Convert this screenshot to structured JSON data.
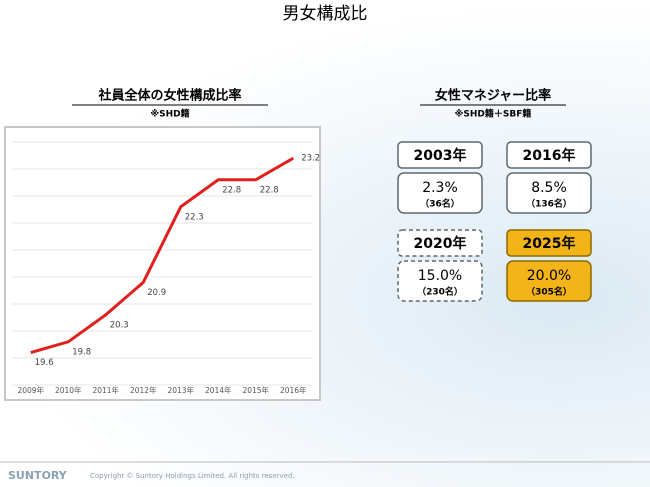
{
  "title": "男女構成比",
  "chart_data": {
    "type": "line",
    "title": "社員全体の女性構成比率",
    "subtitle": "※SHD籍",
    "categories": [
      "2009年",
      "2010年",
      "2011年",
      "2012年",
      "2013年",
      "2014年",
      "2015年",
      "2016年"
    ],
    "values": [
      19.6,
      19.8,
      20.3,
      20.9,
      22.3,
      22.8,
      22.8,
      23.2
    ],
    "color": "#e0201c",
    "ylim": [
      19,
      23.5
    ],
    "yticks": [
      19,
      19.5,
      20,
      20.5,
      21,
      21.5,
      22,
      22.5,
      23,
      23.5
    ],
    "grid": true
  },
  "manager_ratio": {
    "title": "女性マネジャー比率",
    "subtitle": "※SHD籍＋SBF籍",
    "items": [
      {
        "year": "2003年",
        "value": "2.3%",
        "count": "（36名）"
      },
      {
        "year": "2016年",
        "value": "8.5%",
        "count": "（136名）"
      },
      {
        "year": "2020年",
        "value": "15.0%",
        "count": "（230名）"
      },
      {
        "year": "2025年",
        "value": "20.0%",
        "count": "（305名）"
      }
    ]
  },
  "footer": {
    "logo": "SUNTORY",
    "copyright": "Copyright © Suntory Holdings Limited. All rights reserved."
  }
}
